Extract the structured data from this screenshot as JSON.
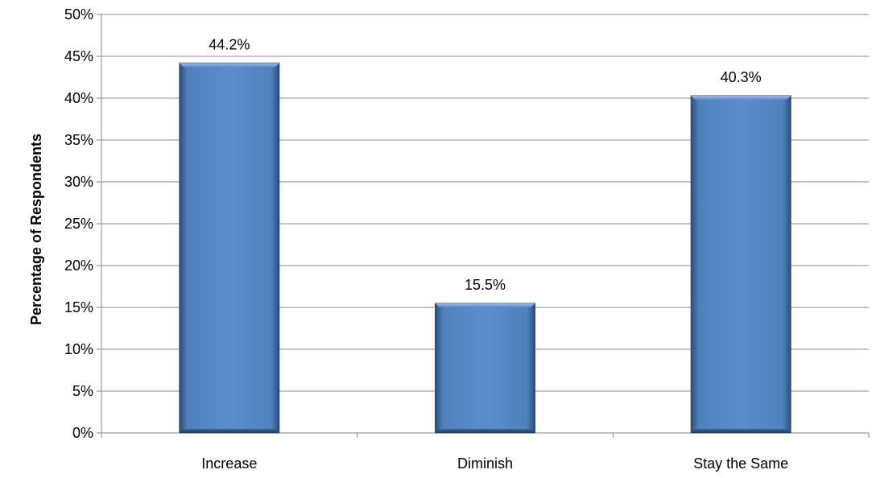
{
  "chart_data": {
    "type": "bar",
    "title": "",
    "xlabel": "",
    "ylabel": "Percentage of Respondents",
    "categories": [
      "Increase",
      "Diminish",
      "Stay the Same"
    ],
    "values": [
      44.2,
      15.5,
      40.3
    ],
    "data_labels": [
      "44.2%",
      "15.5%",
      "40.3%"
    ],
    "ylim": [
      0,
      50
    ],
    "yticks": [
      0,
      5,
      10,
      15,
      20,
      25,
      30,
      35,
      40,
      45,
      50
    ],
    "ytick_labels": [
      "0%",
      "5%",
      "10%",
      "15%",
      "20%",
      "25%",
      "30%",
      "35%",
      "40%",
      "45%",
      "50%"
    ],
    "grid": true,
    "legend": "none",
    "colors": {
      "bar": "#4F81BD",
      "bar_light": "#7BA3D8",
      "bar_dark": "#2C4D75",
      "grid": "#8C8C8C",
      "axis": "#868686"
    }
  }
}
